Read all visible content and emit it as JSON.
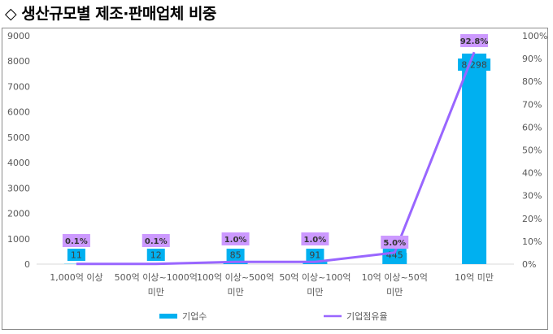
{
  "heading": "◇ 생산규모별 제조·판매업체 비중",
  "chart_data": {
    "type": "bar+line",
    "categories": [
      [
        "1,000억 이상"
      ],
      [
        "500억 이상~1000억",
        "미만"
      ],
      [
        "100억 이상~500억",
        "미만"
      ],
      [
        "50억 이상~100억",
        "미만"
      ],
      [
        "10억 이상~50억",
        "미만"
      ],
      [
        "10억 미만"
      ]
    ],
    "series": [
      {
        "name": "기업수",
        "type": "bar",
        "axis": "left",
        "values": [
          11,
          12,
          85,
          91,
          445,
          8298
        ],
        "labels": [
          "11",
          "12",
          "85",
          "91",
          "445",
          "8,298"
        ],
        "color": "#00b0f0"
      },
      {
        "name": "기업점유율",
        "type": "line",
        "axis": "right",
        "values": [
          0.1,
          0.1,
          1.0,
          1.0,
          5.0,
          92.8
        ],
        "labels": [
          "0.1%",
          "0.1%",
          "1.0%",
          "1.0%",
          "5.0%",
          "92.8%"
        ],
        "color": "#9966ff"
      }
    ],
    "y_left": {
      "ylim": [
        0,
        9000
      ],
      "ticks": [
        "0",
        "1000",
        "2000",
        "3000",
        "4000",
        "5000",
        "6000",
        "7000",
        "8000",
        "9000"
      ]
    },
    "y_right": {
      "ylim": [
        0,
        100
      ],
      "ticks": [
        "0%",
        "10%",
        "20%",
        "30%",
        "40%",
        "50%",
        "60%",
        "70%",
        "80%",
        "90%",
        "100%"
      ]
    },
    "grid": false,
    "legend_position": "bottom"
  }
}
